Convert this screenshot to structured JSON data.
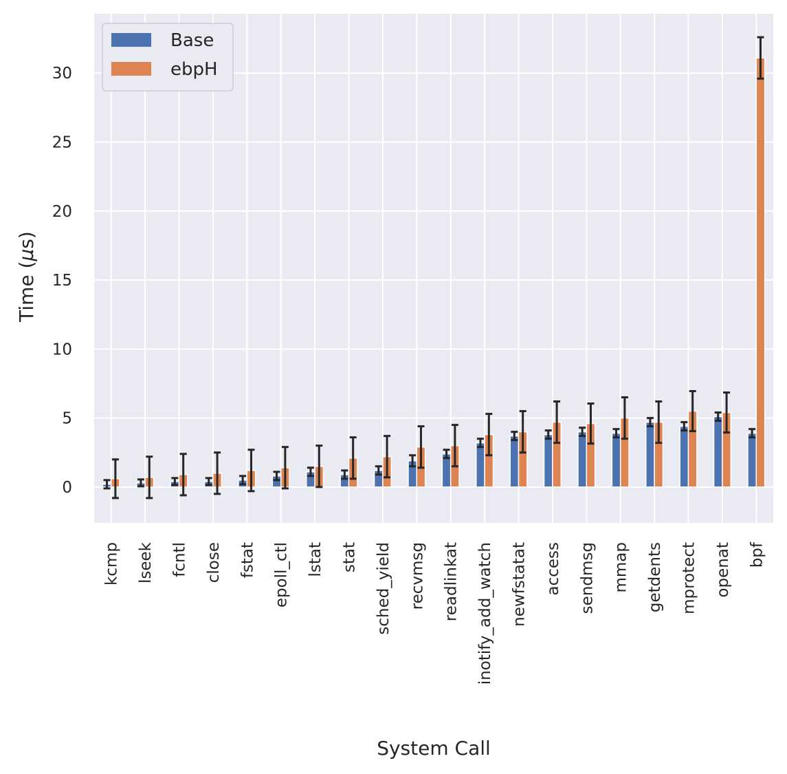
{
  "chart_data": {
    "type": "bar",
    "xlabel": "System Call",
    "ylabel_prefix": "Time (",
    "ylabel_symbol": "μ",
    "ylabel_suffix": "s)",
    "ylim": [
      -2.6,
      34.3
    ],
    "yticks": [
      0,
      5,
      10,
      15,
      20,
      25,
      30
    ],
    "grid": true,
    "legend_position": "top-left",
    "categories": [
      "kcmp",
      "lseek",
      "fcntl",
      "close",
      "fstat",
      "epoll_ctl",
      "lstat",
      "stat",
      "sched_yield",
      "recvmsg",
      "readlinkat",
      "inotify_add_watch",
      "newfstatat",
      "access",
      "sendmsg",
      "mmap",
      "getdents",
      "mprotect",
      "openat",
      "bpf"
    ],
    "series": [
      {
        "name": "Base",
        "color": "#4c72b0",
        "values": [
          0.2,
          0.3,
          0.4,
          0.4,
          0.5,
          0.8,
          1.1,
          0.9,
          1.2,
          1.9,
          2.4,
          3.2,
          3.7,
          3.8,
          4.0,
          3.9,
          4.7,
          4.4,
          5.1,
          3.9
        ],
        "errors": [
          0.3,
          0.25,
          0.25,
          0.25,
          0.3,
          0.3,
          0.3,
          0.3,
          0.3,
          0.4,
          0.3,
          0.3,
          0.3,
          0.3,
          0.3,
          0.3,
          0.3,
          0.3,
          0.3,
          0.3
        ]
      },
      {
        "name": "ebpH",
        "color": "#dd8452",
        "values": [
          0.6,
          0.7,
          0.9,
          1.0,
          1.2,
          1.4,
          1.5,
          2.1,
          2.2,
          2.9,
          3.0,
          3.8,
          4.0,
          4.7,
          4.6,
          5.0,
          4.7,
          5.5,
          5.4,
          31.1
        ],
        "errors": [
          1.4,
          1.5,
          1.5,
          1.5,
          1.5,
          1.5,
          1.5,
          1.5,
          1.5,
          1.5,
          1.5,
          1.5,
          1.5,
          1.5,
          1.45,
          1.5,
          1.5,
          1.45,
          1.45,
          1.5
        ]
      }
    ]
  }
}
